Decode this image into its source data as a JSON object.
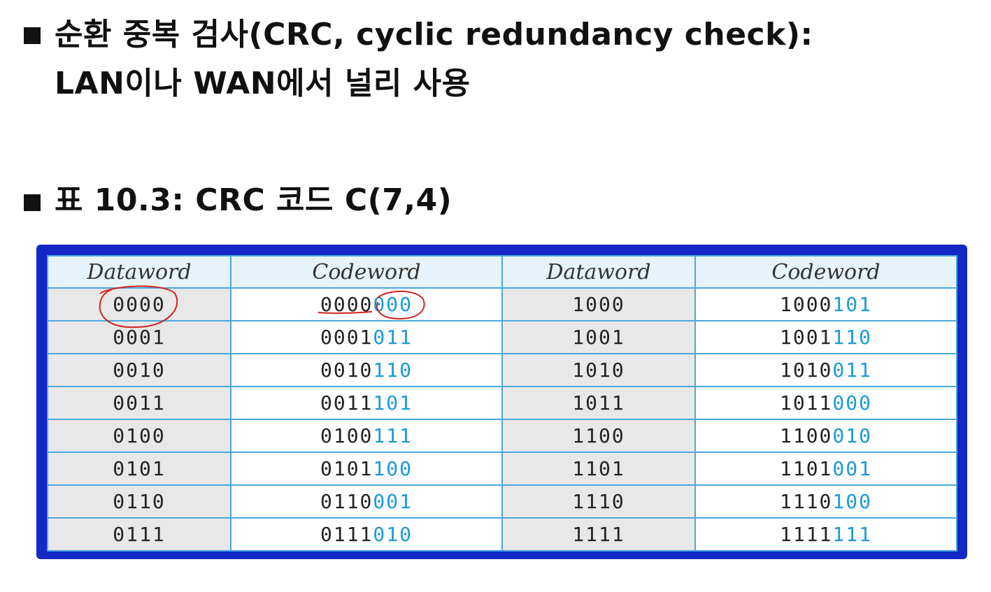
{
  "bullets": [
    {
      "line1": "순환 중복 검사(CRC, cyclic redundancy check):",
      "line2": "LAN이나 WAN에서 널리 사용"
    },
    {
      "line1": "표 10.3: CRC 코드 C(7,4)"
    }
  ],
  "table": {
    "headers": [
      "Dataword",
      "Codeword",
      "Dataword",
      "Codeword"
    ],
    "rows": [
      {
        "dw1": "0000",
        "cw1_data": "0000",
        "cw1_parity": "000",
        "dw2": "1000",
        "cw2_data": "1000",
        "cw2_parity": "101"
      },
      {
        "dw1": "0001",
        "cw1_data": "0001",
        "cw1_parity": "011",
        "dw2": "1001",
        "cw2_data": "1001",
        "cw2_parity": "110"
      },
      {
        "dw1": "0010",
        "cw1_data": "0010",
        "cw1_parity": "110",
        "dw2": "1010",
        "cw2_data": "1010",
        "cw2_parity": "011"
      },
      {
        "dw1": "0011",
        "cw1_data": "0011",
        "cw1_parity": "101",
        "dw2": "1011",
        "cw2_data": "1011",
        "cw2_parity": "000"
      },
      {
        "dw1": "0100",
        "cw1_data": "0100",
        "cw1_parity": "111",
        "dw2": "1100",
        "cw2_data": "1100",
        "cw2_parity": "010"
      },
      {
        "dw1": "0101",
        "cw1_data": "0101",
        "cw1_parity": "100",
        "dw2": "1101",
        "cw2_data": "1101",
        "cw2_parity": "001"
      },
      {
        "dw1": "0110",
        "cw1_data": "0110",
        "cw1_parity": "001",
        "dw2": "1110",
        "cw2_data": "1110",
        "cw2_parity": "100"
      },
      {
        "dw1": "0111",
        "cw1_data": "0111",
        "cw1_parity": "010",
        "dw2": "1111",
        "cw2_data": "1111",
        "cw2_parity": "111"
      }
    ]
  },
  "colors": {
    "frame": "#1428c8",
    "grid": "#4aa8dc",
    "parity_text": "#1a9ad6",
    "annotation": "#d42020"
  }
}
